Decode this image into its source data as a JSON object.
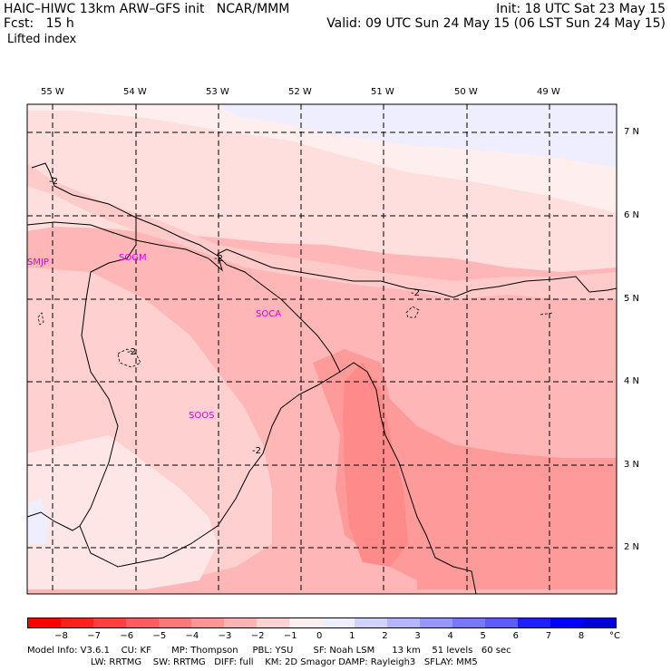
{
  "header": {
    "title": "HAIC–HIWC 13km ARW–GFS init   NCAR/MMM",
    "fcst_label": "Fcst:   15 h",
    "variable": "Lifted index",
    "init": "Init: 18 UTC Sat 23 May 15",
    "valid": "Valid: 09 UTC Sun 24 May 15 (06 LST Sun 24 May 15)"
  },
  "map": {
    "longitude_labels": [
      "55 W",
      "54 W",
      "53 W",
      "52 W",
      "51 W",
      "50 W",
      "49 W"
    ],
    "latitude_labels": [
      "7 N",
      "6 N",
      "5 N",
      "4 N",
      "3 N",
      "2 N"
    ],
    "stations": [
      "SMJP",
      "SOGM",
      "SOCA",
      "SOOS"
    ],
    "contour_labels": [
      "-2",
      "-2",
      "-2",
      "-2",
      "-2"
    ]
  },
  "colorbar": {
    "ticks": [
      "−8",
      "−7",
      "−6",
      "−5",
      "−4",
      "−3",
      "−2",
      "−1",
      "0",
      "1",
      "2",
      "3",
      "4",
      "5",
      "6",
      "7",
      "8"
    ],
    "unit": "°C",
    "colors": [
      "#ff0000",
      "#ff2020",
      "#ff4040",
      "#ff5d5d",
      "#ff7878",
      "#ff9696",
      "#ffb4b4",
      "#ffd2d2",
      "#ffeeee",
      "#eeeeff",
      "#d2d2ff",
      "#b4b4ff",
      "#9696ff",
      "#7878ff",
      "#5d5dff",
      "#2020ff",
      "#0000ff",
      "#0000d8"
    ]
  },
  "model_info": {
    "line1": "Model Info: V3.6.1    CU: KF       MP: Thompson     PBL: YSU       SF: Noah LSM      13 km    51 levels   60 sec",
    "line2": "                      LW: RRTMG    SW: RRTMG   DIFF: full    KM: 2D Smagor DAMP: Rayleigh3   SFLAY: MM5"
  }
}
